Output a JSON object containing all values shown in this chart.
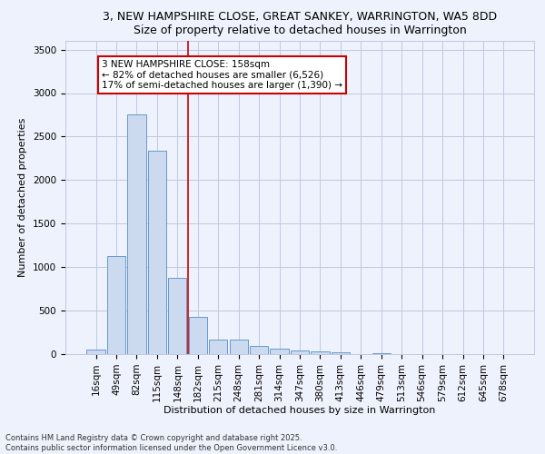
{
  "title1": "3, NEW HAMPSHIRE CLOSE, GREAT SANKEY, WARRINGTON, WA5 8DD",
  "title2": "Size of property relative to detached houses in Warrington",
  "xlabel": "Distribution of detached houses by size in Warrington",
  "ylabel": "Number of detached properties",
  "categories": [
    "16sqm",
    "49sqm",
    "82sqm",
    "115sqm",
    "148sqm",
    "182sqm",
    "215sqm",
    "248sqm",
    "281sqm",
    "314sqm",
    "347sqm",
    "380sqm",
    "413sqm",
    "446sqm",
    "479sqm",
    "513sqm",
    "546sqm",
    "579sqm",
    "612sqm",
    "645sqm",
    "678sqm"
  ],
  "values": [
    50,
    1130,
    2760,
    2340,
    880,
    430,
    170,
    165,
    90,
    60,
    45,
    30,
    25,
    0,
    15,
    0,
    0,
    0,
    0,
    0,
    0
  ],
  "bar_color": "#ccdaf0",
  "bar_edge_color": "#6699cc",
  "vline_x": 4.5,
  "vline_color": "#cc0000",
  "annotation_line1": "3 NEW HAMPSHIRE CLOSE: 158sqm",
  "annotation_line2": "← 82% of detached houses are smaller (6,526)",
  "annotation_line3": "17% of semi-detached houses are larger (1,390) →",
  "annotation_box_color": "#cc0000",
  "ylim": [
    0,
    3600
  ],
  "yticks": [
    0,
    500,
    1000,
    1500,
    2000,
    2500,
    3000,
    3500
  ],
  "footnote1": "Contains HM Land Registry data © Crown copyright and database right 2025.",
  "footnote2": "Contains public sector information licensed under the Open Government Licence v3.0.",
  "bg_color": "#eef2fc",
  "plot_bg_color": "#eef2fc",
  "grid_color": "#c0c8e0",
  "title_fontsize": 9,
  "axis_label_fontsize": 8,
  "tick_fontsize": 7.5,
  "annot_fontsize": 7.5
}
